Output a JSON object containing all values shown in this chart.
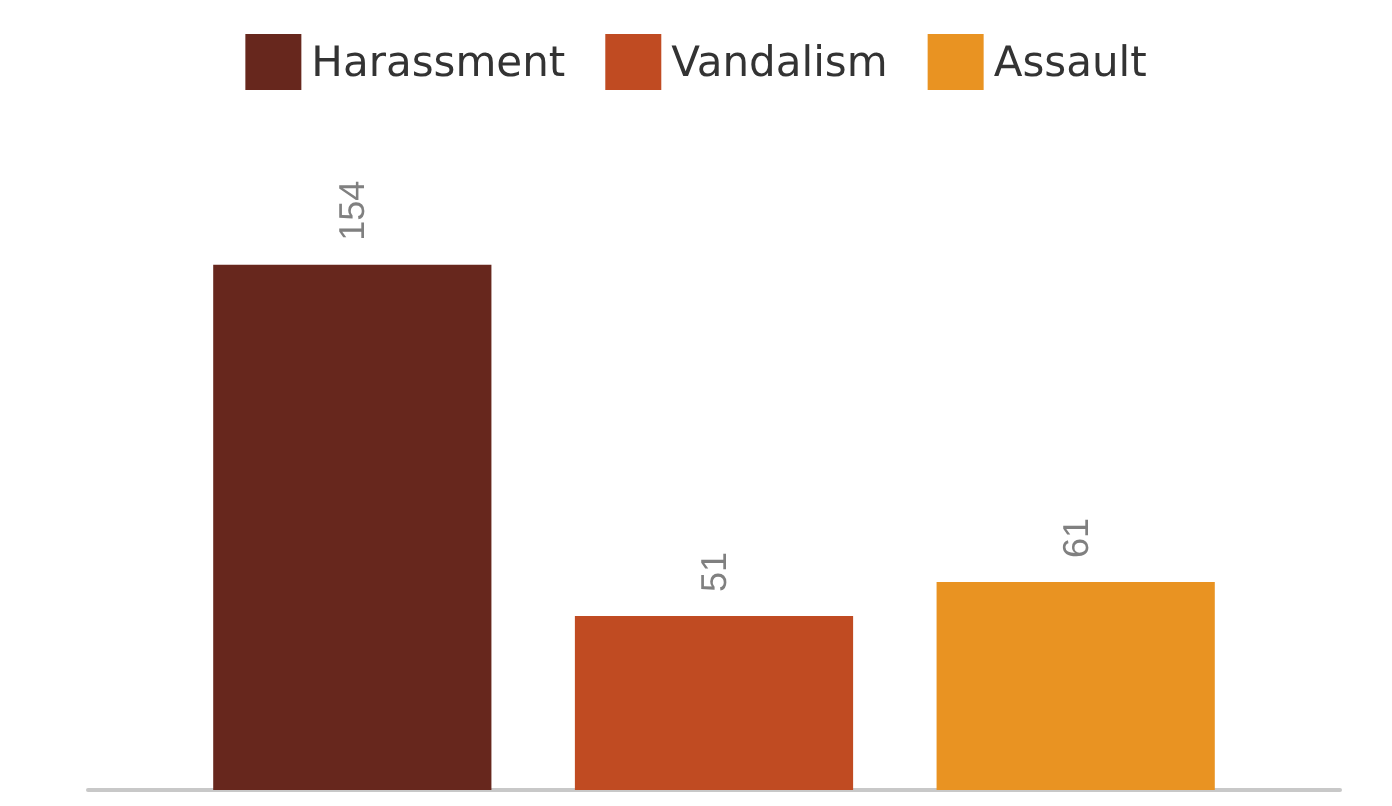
{
  "chart_data": {
    "type": "bar",
    "categories": [
      null
    ],
    "series": [
      {
        "name": "Harassment",
        "color": "#67271d",
        "values": [
          154
        ]
      },
      {
        "name": "Vandalism",
        "color": "#c04b22",
        "values": [
          51
        ]
      },
      {
        "name": "Assault",
        "color": "#e99322",
        "values": [
          61
        ]
      }
    ],
    "data_labels": true,
    "legend": "top",
    "grid": false
  }
}
